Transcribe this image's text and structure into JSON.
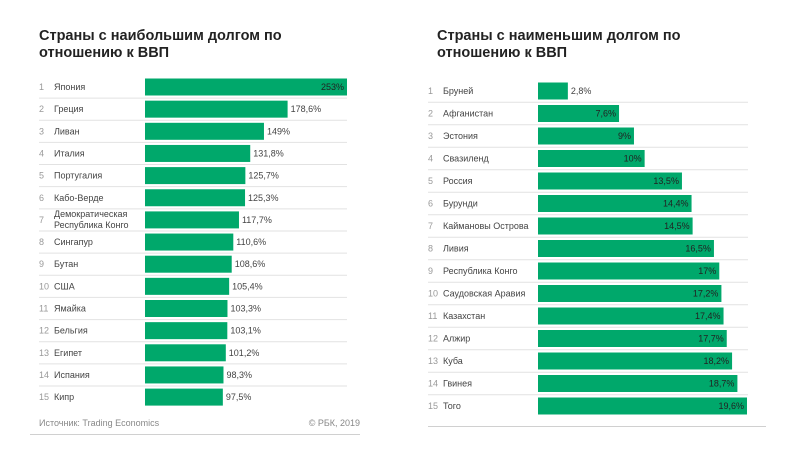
{
  "chart_data": [
    {
      "type": "bar",
      "orientation": "horizontal",
      "title": "Страны с наибольшим долгом по отношению к ВВП",
      "ranks": [
        "1",
        "2",
        "3",
        "4",
        "5",
        "6",
        "7",
        "8",
        "9",
        "10",
        "11",
        "12",
        "13",
        "14",
        "15"
      ],
      "categories": [
        "Япония",
        "Греция",
        "Ливан",
        "Италия",
        "Португалия",
        "Кабо-Верде",
        "Демократическая Республика Конго",
        "Сингапур",
        "Бутан",
        "США",
        "Ямайка",
        "Бельгия",
        "Египет",
        "Испания",
        "Кипр"
      ],
      "values": [
        253,
        178.6,
        149,
        131.8,
        125.7,
        125.3,
        117.7,
        110.6,
        108.6,
        105.4,
        103.3,
        103.1,
        101.2,
        98.3,
        97.5
      ],
      "labels": [
        "253%",
        "178,6%",
        "149%",
        "131,8%",
        "125,7%",
        "125,3%",
        "117,7%",
        "110,6%",
        "108,6%",
        "105,4%",
        "103,3%",
        "103,1%",
        "101,2%",
        "98,3%",
        "97,5%"
      ],
      "unit": "%",
      "xlim": [
        0,
        253
      ],
      "bar_color": "#00a86b"
    },
    {
      "type": "bar",
      "orientation": "horizontal",
      "title": "Страны с наименьшим долгом по отношению к ВВП",
      "ranks": [
        "1",
        "2",
        "3",
        "4",
        "5",
        "6",
        "7",
        "8",
        "9",
        "10",
        "11",
        "12",
        "13",
        "14",
        "15"
      ],
      "categories": [
        "Бруней",
        "Афганистан",
        "Эстония",
        "Свазиленд",
        "Россия",
        "Бурунди",
        "Каймановы Острова",
        "Ливия",
        "Республика Конго",
        "Саудовская Аравия",
        "Казахстан",
        "Алжир",
        "Куба",
        "Гвинея",
        "Того"
      ],
      "values": [
        2.8,
        7.6,
        9,
        10,
        13.5,
        14.4,
        14.5,
        16.5,
        17,
        17.2,
        17.4,
        17.7,
        18.2,
        18.7,
        19.6
      ],
      "labels": [
        "2,8%",
        "7,6%",
        "9%",
        "10%",
        "13,5%",
        "14,4%",
        "14,5%",
        "16,5%",
        "17%",
        "17,2%",
        "17,4%",
        "17,7%",
        "18,2%",
        "18,7%",
        "19,6%"
      ],
      "unit": "%",
      "xlim": [
        0,
        19.6
      ],
      "bar_color": "#00a86b"
    }
  ],
  "footer": {
    "source": "Источник: Trading Economics",
    "copyright": "© РБК, 2019"
  }
}
